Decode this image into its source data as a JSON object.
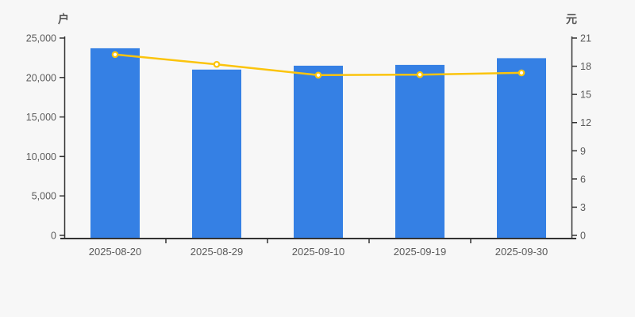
{
  "chart_data": {
    "type": "bar+line dual-axis",
    "title": "",
    "legend": "none",
    "grid": false,
    "categories": [
      "2025-08-20",
      "2025-08-29",
      "2025-09-10",
      "2025-09-19",
      "2025-09-30"
    ],
    "series": [
      {
        "name": "holder-count-bars",
        "type": "bar",
        "axis": "left",
        "unit": "户",
        "color": "#3580e4",
        "values": [
          23700,
          21000,
          21500,
          21600,
          22450
        ]
      },
      {
        "name": "price-line",
        "type": "line",
        "axis": "right",
        "unit": "元",
        "color": "#fbc40d",
        "marker": "hollow-circle",
        "values": [
          19.25,
          18.2,
          17.05,
          17.1,
          17.3
        ]
      }
    ],
    "left_axis": {
      "unit": "户",
      "min": 0,
      "max": 25000,
      "step": 5000,
      "tick_labels": [
        "0",
        "5,000",
        "10,000",
        "15,000",
        "20,000",
        "25,000"
      ]
    },
    "right_axis": {
      "unit": "元",
      "min": 0,
      "max": 21,
      "step": 3,
      "tick_labels": [
        "0",
        "3",
        "6",
        "9",
        "12",
        "15",
        "18",
        "21"
      ]
    }
  },
  "colors": {
    "background": "#f7f7f7",
    "tick_text": "#5a5a5a",
    "axis_line": "#333333",
    "bar": "#3580e4",
    "line": "#fbc40d",
    "marker_fill": "#ffffff"
  }
}
